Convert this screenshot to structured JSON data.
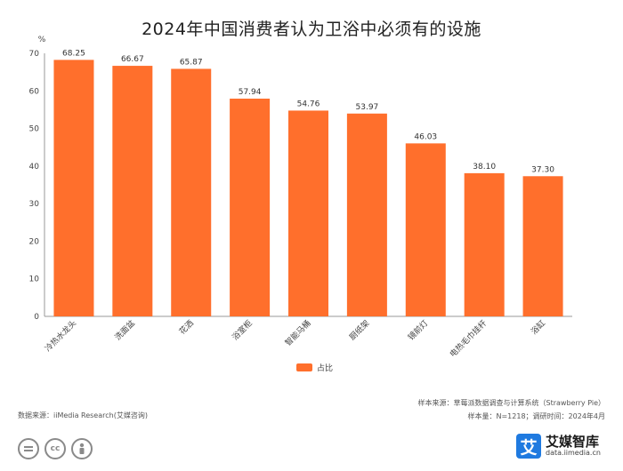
{
  "chart_data": {
    "type": "bar",
    "title": "2024年中国消费者认为卫浴中必须有的设施",
    "ylabel": "%",
    "categories": [
      "冷热水龙头",
      "洗面盆",
      "花洒",
      "浴室柜",
      "智能马桶",
      "厨纸架",
      "镜前灯",
      "电热毛巾挂杆",
      "浴缸"
    ],
    "series": [
      {
        "name": "占比",
        "values": [
          68.25,
          66.67,
          65.87,
          57.94,
          54.76,
          53.97,
          46.03,
          38.1,
          37.3
        ]
      }
    ],
    "value_labels": [
      "68.25",
      "66.67",
      "65.87",
      "57.94",
      "54.76",
      "53.97",
      "46.03",
      "38.10",
      "37.30"
    ],
    "yticks": [
      "0",
      "10",
      "20",
      "30",
      "40",
      "50",
      "60",
      "70"
    ],
    "ylim": [
      0,
      70
    ],
    "grid": false,
    "legend": "bottom-center",
    "bar_color": "#FF6F2C"
  },
  "footer": {
    "source": "数据来源：iiMedia Research(艾媒咨询)",
    "sample_source": "样本来源：草莓派数据调查与计算系统（Strawberry Pie）",
    "sample_info": "样本量：N=1218；调研时间：2024年4月"
  },
  "license_icons": [
    "equal-icon",
    "cc-icon",
    "person-icon"
  ],
  "brand": {
    "name": "艾媒智库",
    "url": "data.iimedia.cn",
    "logo_char": "艾",
    "color": "#1F7AE0"
  }
}
